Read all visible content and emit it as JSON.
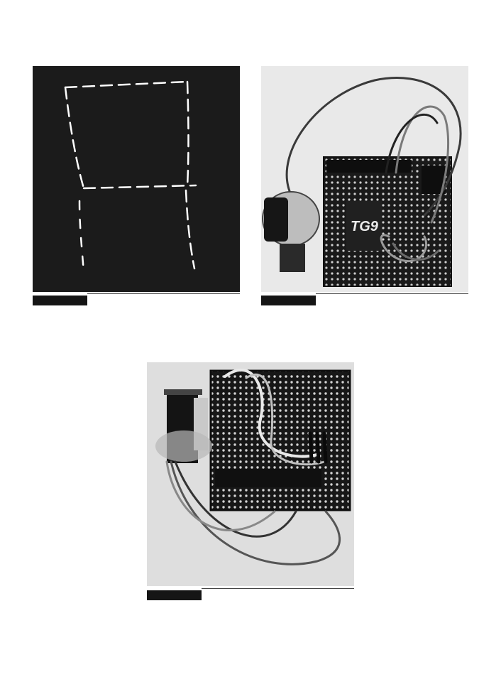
{
  "page": {
    "background": "#ffffff",
    "caption_bar_color": "#151515"
  },
  "figures": [
    {
      "id": "figure-light-trail",
      "description_icon": "light-painting-photo",
      "caption": ""
    },
    {
      "id": "figure-breadboard-top",
      "description_icon": "servo-breadboard-photo",
      "printed_text": "TG9",
      "caption": ""
    },
    {
      "id": "figure-breadboard-angle",
      "description_icon": "servo-breadboard-photo",
      "caption": ""
    }
  ]
}
